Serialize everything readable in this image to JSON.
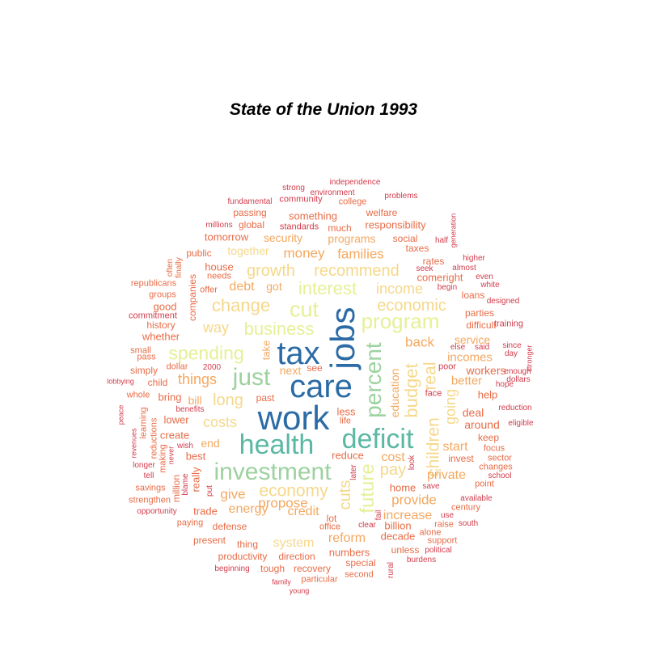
{
  "title": "State of the Union 1993",
  "palette": {
    "c1": "#2b6ba6",
    "c2": "#5bb8a3",
    "c3": "#9dd29f",
    "c4": "#e6f096",
    "c5": "#f5d88a",
    "c6": "#f4a860",
    "c7": "#e86c47",
    "c8": "#d23c4c"
  },
  "words": [
    "jobs",
    "tax",
    "care",
    "work",
    "health",
    "deficit",
    "investment",
    "percent",
    "just",
    "cut",
    "program",
    "spending",
    "future",
    "change",
    "business",
    "interest",
    "economy",
    "budget",
    "children",
    "real",
    "economic",
    "growth",
    "recommend",
    "families",
    "money",
    "income",
    "things",
    "long",
    "costs",
    "way",
    "cuts",
    "going",
    "pay",
    "provide",
    "private",
    "increase",
    "reform",
    "system",
    "propose",
    "credit",
    "energy",
    "give",
    "start",
    "back",
    "education",
    "cost",
    "incomes",
    "better",
    "workers",
    "service",
    "debt",
    "together",
    "security",
    "programs",
    "responsibility",
    "something",
    "much",
    "taxes",
    "rates",
    "house",
    "companies",
    "take",
    "next",
    "see",
    "less",
    "life",
    "reduce",
    "bill",
    "end",
    "lower",
    "create",
    "best",
    "really",
    "million",
    "bring",
    "child",
    "simply",
    "dollar",
    "pass",
    "small",
    "whether",
    "history",
    "good",
    "commitment",
    "groups",
    "republicans",
    "offer",
    "needs",
    "public",
    "often",
    "finally",
    "tomorrow",
    "millions",
    "global",
    "passing",
    "fundamental",
    "community",
    "strong",
    "independence",
    "environment",
    "college",
    "problems",
    "welfare",
    "social",
    "standards",
    "generation",
    "half",
    "comeright",
    "seek",
    "almost",
    "begin",
    "white",
    "even",
    "higher",
    "loans",
    "parties",
    "designed",
    "difficult",
    "training",
    "else",
    "said",
    "since",
    "day",
    "enough",
    "dollars",
    "stronger",
    "hope",
    "help",
    "reduction",
    "eligible",
    "deal",
    "around",
    "keep",
    "focus",
    "sector",
    "invest",
    "changes",
    "school",
    "point",
    "save",
    "available",
    "century",
    "raise",
    "alone",
    "south",
    "support",
    "political",
    "unless",
    "burdens",
    "decade",
    "billion",
    "home",
    "fail",
    "look",
    "clear",
    "office",
    "lot",
    "later",
    "numbers",
    "special",
    "second",
    "rural",
    "tough",
    "recovery",
    "particular",
    "family",
    "young",
    "direction",
    "productivity",
    "beginning",
    "thing",
    "present",
    "defense",
    "paying",
    "trade",
    "opportunity",
    "strengthen",
    "savings",
    "longer",
    "tell",
    "revenues",
    "peace",
    "learning",
    "reductions",
    "making",
    "never",
    "wish",
    "benefits",
    "whole",
    "lobbying",
    "2000",
    "past",
    "got",
    "poor",
    "face",
    "blame",
    "put",
    "use"
  ]
}
